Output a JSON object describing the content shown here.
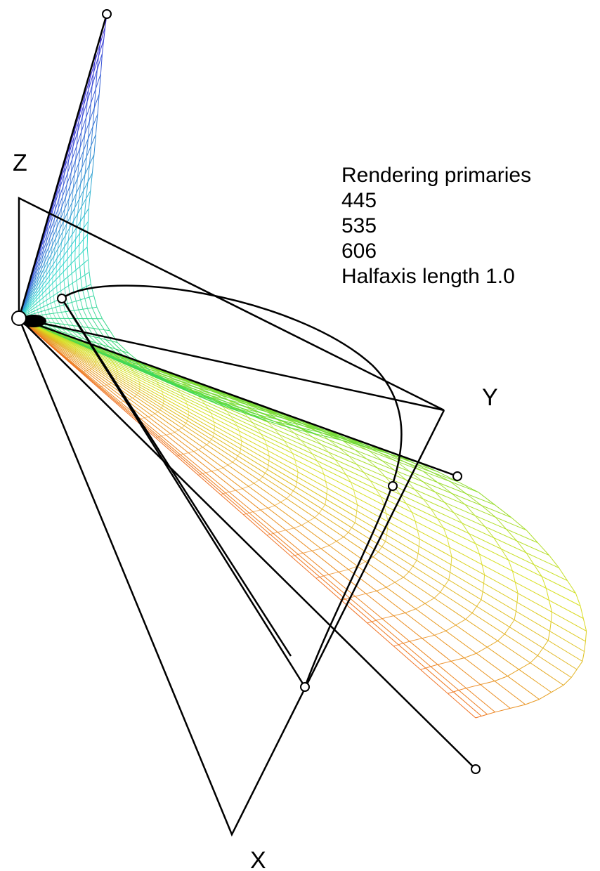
{
  "axes": {
    "x_label": "X",
    "y_label": "Y",
    "z_label": "Z"
  },
  "legend": {
    "heading": "Rendering primaries",
    "primaries": [
      "445",
      "535",
      "606"
    ],
    "halfaxis": "Halfaxis length 1.0"
  },
  "colors": {
    "blue": "#3a20d8",
    "cyan": "#30d8d0",
    "green": "#40d840",
    "yellow": "#d8e020",
    "orange": "#f07020",
    "line": "#000000"
  }
}
